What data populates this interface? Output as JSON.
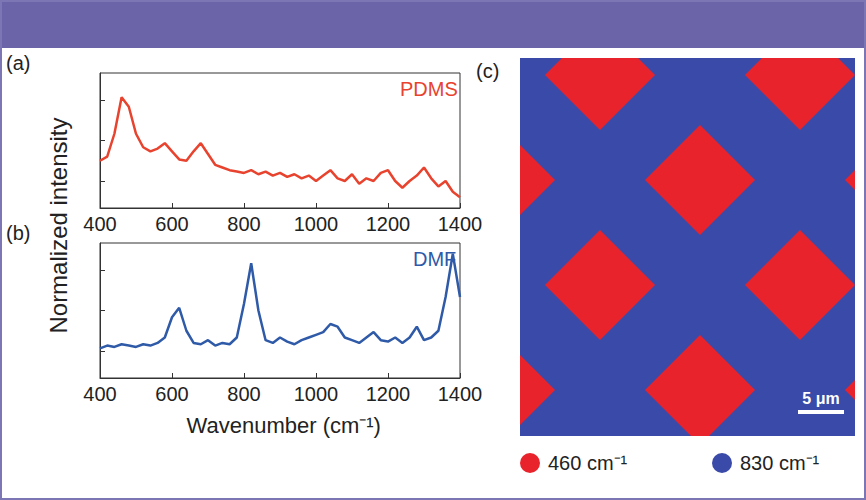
{
  "chart_data": [
    {
      "type": "line",
      "label": "(a)",
      "x": [
        400,
        420,
        440,
        460,
        480,
        500,
        520,
        540,
        560,
        580,
        600,
        620,
        640,
        660,
        680,
        700,
        720,
        740,
        760,
        780,
        800,
        820,
        840,
        860,
        880,
        900,
        920,
        940,
        960,
        980,
        1000,
        1020,
        1040,
        1060,
        1080,
        1100,
        1120,
        1140,
        1160,
        1180,
        1200,
        1220,
        1240,
        1260,
        1280,
        1300,
        1320,
        1340,
        1360,
        1380,
        1400
      ],
      "series": [
        {
          "name": "PDMS",
          "color": "#e8432e",
          "values": [
            0.35,
            0.38,
            0.55,
            0.82,
            0.75,
            0.55,
            0.45,
            0.42,
            0.44,
            0.48,
            0.42,
            0.36,
            0.35,
            0.42,
            0.48,
            0.4,
            0.32,
            0.3,
            0.28,
            0.27,
            0.26,
            0.28,
            0.25,
            0.27,
            0.24,
            0.26,
            0.23,
            0.25,
            0.22,
            0.24,
            0.2,
            0.24,
            0.28,
            0.22,
            0.2,
            0.25,
            0.18,
            0.22,
            0.2,
            0.26,
            0.28,
            0.2,
            0.15,
            0.2,
            0.24,
            0.3,
            0.22,
            0.16,
            0.2,
            0.12,
            0.08
          ]
        }
      ],
      "xlim": [
        400,
        1400
      ],
      "xticks": [
        400,
        600,
        800,
        1000,
        1200,
        1400
      ],
      "ylim": [
        0,
        1
      ],
      "yticks": [
        0.2,
        0.5,
        0.8
      ],
      "tick_labels": "x",
      "grid": false
    },
    {
      "type": "line",
      "label": "(b)",
      "x": [
        400,
        420,
        440,
        460,
        480,
        500,
        520,
        540,
        560,
        580,
        600,
        620,
        640,
        660,
        680,
        700,
        720,
        740,
        760,
        780,
        800,
        820,
        840,
        860,
        880,
        900,
        920,
        940,
        960,
        980,
        1000,
        1020,
        1040,
        1060,
        1080,
        1100,
        1120,
        1140,
        1160,
        1180,
        1200,
        1220,
        1240,
        1260,
        1280,
        1300,
        1320,
        1340,
        1360,
        1380,
        1400
      ],
      "series": [
        {
          "name": "DMF",
          "color": "#2f5aa8",
          "values": [
            0.22,
            0.24,
            0.23,
            0.25,
            0.24,
            0.23,
            0.25,
            0.24,
            0.26,
            0.3,
            0.45,
            0.52,
            0.35,
            0.26,
            0.25,
            0.28,
            0.24,
            0.26,
            0.25,
            0.3,
            0.55,
            0.85,
            0.5,
            0.28,
            0.26,
            0.3,
            0.27,
            0.25,
            0.28,
            0.3,
            0.32,
            0.34,
            0.4,
            0.38,
            0.3,
            0.28,
            0.26,
            0.3,
            0.34,
            0.28,
            0.27,
            0.3,
            0.26,
            0.3,
            0.38,
            0.28,
            0.3,
            0.35,
            0.6,
            0.92,
            0.6
          ]
        }
      ],
      "xlim": [
        400,
        1400
      ],
      "xticks": [
        400,
        600,
        800,
        1000,
        1200,
        1400
      ],
      "ylim": [
        0,
        1
      ],
      "yticks": [
        0.2,
        0.5,
        0.8
      ],
      "tick_labels": "x",
      "grid": false,
      "x_label": "Wavenumber (cm⁻¹)"
    }
  ],
  "y_label": "Normalized intensity",
  "image_panel": {
    "label": "(c)",
    "scale_bar": "5 μm",
    "channels": [
      {
        "label": "460 cm⁻¹",
        "color": "#e8232b"
      },
      {
        "label": "830 cm⁻¹",
        "color": "#3a4aa8"
      }
    ]
  }
}
